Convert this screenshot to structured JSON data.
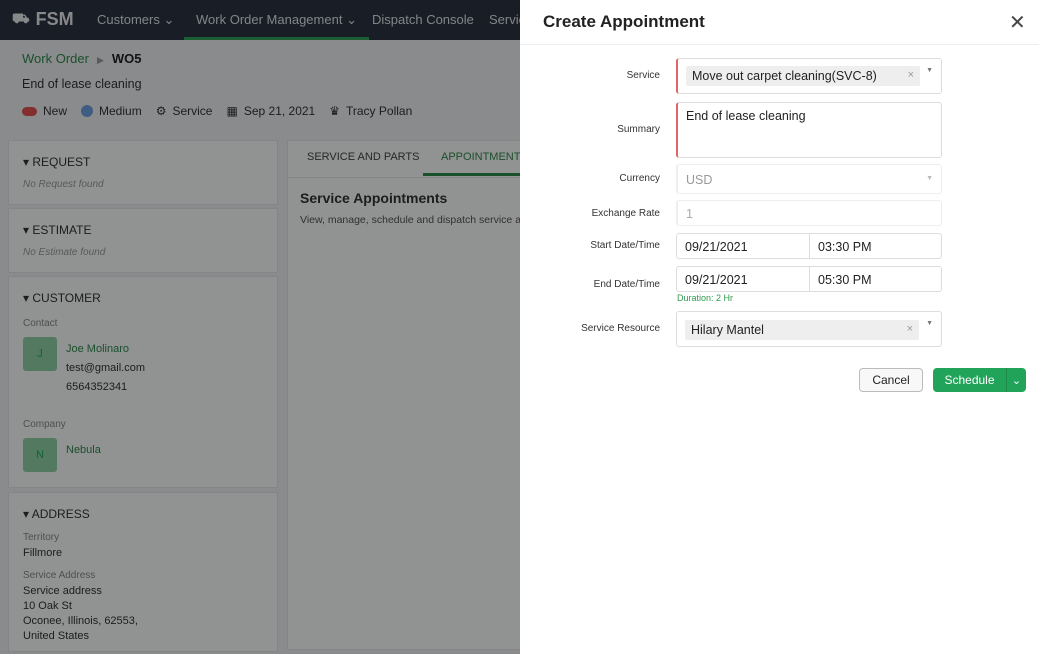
{
  "nav": {
    "logo": "FSM",
    "items": [
      "Customers",
      "Work Order Management",
      "Dispatch Console",
      "Servic"
    ]
  },
  "breadcrumb": {
    "parent": "Work Order",
    "current": "WO5"
  },
  "work_order": {
    "title": "End of lease cleaning",
    "status": "New",
    "priority": "Medium",
    "type": "Service",
    "date": "Sep 21, 2021",
    "owner": "Tracy Pollan"
  },
  "sections": {
    "request": {
      "title": "REQUEST",
      "empty": "No Request found"
    },
    "estimate": {
      "title": "ESTIMATE",
      "empty": "No Estimate found"
    },
    "customer": {
      "title": "CUSTOMER",
      "contact_label": "Contact",
      "contact_initial": "J",
      "contact_name": "Joe Molinaro",
      "contact_email": "test@gmail.com",
      "contact_phone": "6564352341",
      "company_label": "Company",
      "company_initial": "N",
      "company_name": "Nebula"
    },
    "address": {
      "title": "ADDRESS",
      "territory_label": "Territory",
      "territory": "Fillmore",
      "service_address_label": "Service Address",
      "address_lines": [
        "Service address",
        "10 Oak St",
        "Oconee, Illinois, 62553,",
        "United States"
      ]
    }
  },
  "tabs": [
    "SERVICE AND PARTS",
    "APPOINTMENTS"
  ],
  "appointments": {
    "title": "Service Appointments",
    "desc": "View, manage, schedule and dispatch service appo"
  },
  "modal": {
    "title": "Create Appointment",
    "fields": {
      "service": {
        "label": "Service",
        "value": "Move out carpet cleaning(SVC-8)"
      },
      "summary": {
        "label": "Summary",
        "value": "End of lease cleaning"
      },
      "currency": {
        "label": "Currency",
        "value": "USD"
      },
      "exchange_rate": {
        "label": "Exchange Rate",
        "value": "1"
      },
      "start": {
        "label": "Start Date/Time",
        "date": "09/21/2021",
        "time": "03:30 PM"
      },
      "end": {
        "label": "End Date/Time",
        "date": "09/21/2021",
        "time": "05:30 PM",
        "duration": "Duration: 2 Hr"
      },
      "resource": {
        "label": "Service Resource",
        "value": "Hilary Mantel"
      }
    },
    "cancel": "Cancel",
    "schedule": "Schedule"
  },
  "colors": {
    "accent": "#2f8a4c",
    "button": "#22a35a",
    "nav": "#2b3340",
    "required": "#e06666"
  }
}
